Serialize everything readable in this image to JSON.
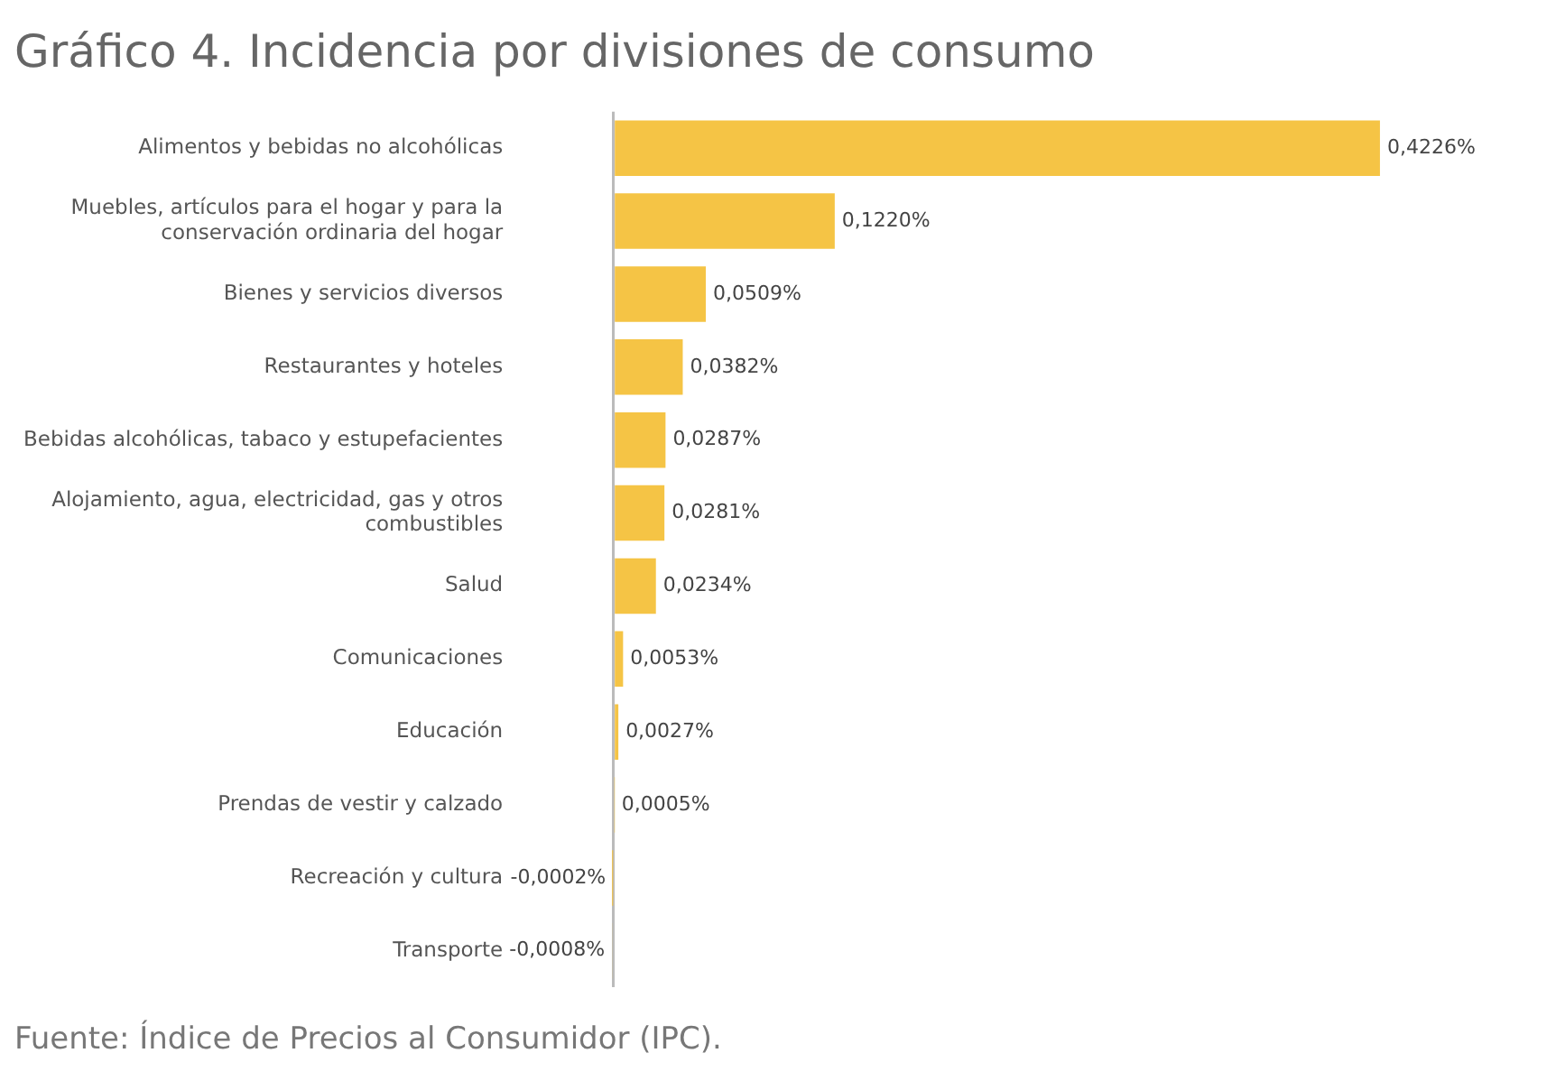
{
  "chart_data": {
    "type": "bar",
    "orientation": "horizontal",
    "title": "Gráfico 4. Incidencia por divisiones de consumo",
    "categories": [
      "Alimentos y bebidas no alcohólicas",
      "Muebles, artículos para el hogar y para la conservación ordinaria del hogar",
      "Bienes y servicios diversos",
      "Restaurantes y hoteles",
      "Bebidas alcohólicas, tabaco y estupefacientes",
      "Alojamiento, agua, electricidad, gas y otros combustibles",
      "Salud",
      "Comunicaciones",
      "Educación",
      "Prendas de vestir y calzado",
      "Recreación y cultura",
      "Transporte"
    ],
    "values": [
      0.4226,
      0.122,
      0.0509,
      0.0382,
      0.0287,
      0.0281,
      0.0234,
      0.0053,
      0.0027,
      0.0005,
      -0.0002,
      -0.0008
    ],
    "value_labels": [
      "0,4226%",
      "0,1220%",
      "0,0509%",
      "0,0382%",
      "0,0287%",
      "0,0281%",
      "0,0234%",
      "0,0053%",
      "0,0027%",
      "0,0005%",
      "-0,0002%",
      "-0,0008%"
    ],
    "color": "#f5c445",
    "tick_labels": "y",
    "grid": false,
    "legend": false,
    "annotations": [
      "Fuente: Índice de Precios al Consumidor (IPC)."
    ]
  }
}
